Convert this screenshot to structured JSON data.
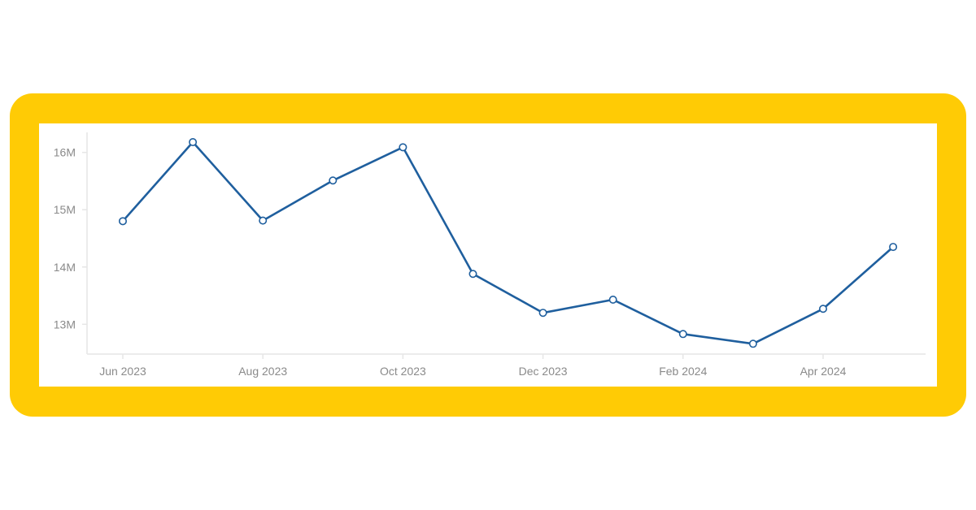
{
  "chart_data": {
    "type": "line",
    "title": "",
    "xlabel": "",
    "ylabel": "",
    "x": [
      "2023-06",
      "2023-07",
      "2023-08",
      "2023-09",
      "2023-10",
      "2023-11",
      "2023-12",
      "2024-01",
      "2024-02",
      "2024-03",
      "2024-04",
      "2024-05"
    ],
    "x_tick_labels": [
      {
        "x": "2023-06",
        "label": "Jun 2023"
      },
      {
        "x": "2023-08",
        "label": "Aug 2023"
      },
      {
        "x": "2023-10",
        "label": "Oct 2023"
      },
      {
        "x": "2023-12",
        "label": "Dec 2023"
      },
      {
        "x": "2024-02",
        "label": "Feb 2024"
      },
      {
        "x": "2024-04",
        "label": "Apr 2024"
      }
    ],
    "y_ticks": [
      {
        "value": 13000000,
        "label": "13M"
      },
      {
        "value": 14000000,
        "label": "14M"
      },
      {
        "value": 15000000,
        "label": "15M"
      },
      {
        "value": 16000000,
        "label": "16M"
      }
    ],
    "ylim": [
      12480000,
      16350000
    ],
    "grid": false,
    "series": [
      {
        "color": "#1F5F9E",
        "values": [
          14800000,
          16180000,
          14810000,
          15510000,
          16090000,
          13880000,
          13200000,
          13430000,
          12830000,
          12660000,
          13270000,
          14350000
        ]
      }
    ]
  }
}
